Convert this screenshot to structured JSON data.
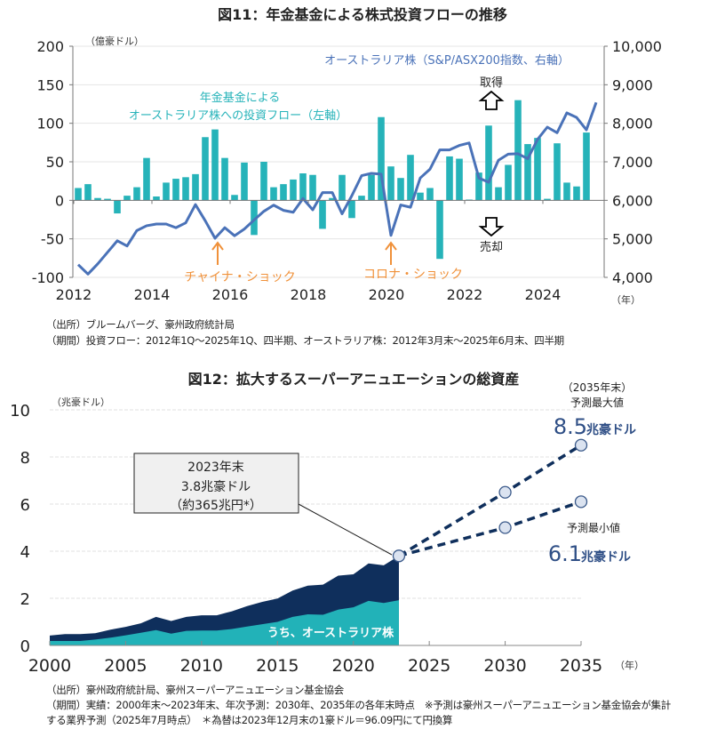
{
  "chart_data": [
    {
      "type": "bar+line",
      "title": "図11：年金基金による株式投資フローの推移",
      "left_unit": "（億豪ドル）",
      "x_unit": "（年）",
      "x_ticks": [
        "2012",
        "2014",
        "2016",
        "2018",
        "2020",
        "2022",
        "2024"
      ],
      "left_ylim": [
        -100,
        200
      ],
      "left_ticks": [
        "200",
        "150",
        "100",
        "50",
        "0",
        "-50",
        "-100"
      ],
      "right_ylim": [
        4000,
        10000
      ],
      "right_ticks": [
        "10,000",
        "9,000",
        "8,000",
        "7,000",
        "6,000",
        "5,000",
        "4,000"
      ],
      "bar_series": {
        "name": "年金基金による\nオーストラリア株への投資フロー（左軸）",
        "label_line1": "年金基金による",
        "label_line2": "オーストラリア株への投資フロー（左軸）",
        "period": "2012Q1-2025Q1 quarterly",
        "values": [
          16,
          21,
          3,
          2,
          -17,
          6,
          17,
          55,
          5,
          23,
          28,
          30,
          34,
          82,
          92,
          55,
          7,
          49,
          -45,
          50,
          17,
          21,
          27,
          35,
          33,
          -37,
          3,
          33,
          -23,
          6,
          33,
          108,
          44,
          29,
          59,
          10,
          16,
          -76,
          57,
          54,
          1,
          36,
          97,
          17,
          46,
          130,
          73,
          81,
          2,
          74,
          23,
          18,
          88
        ]
      },
      "line_series": {
        "name": "オーストラリア株（S&P/ASX200指数、右軸）",
        "period": "2012Q1-2025Q2 quarterly",
        "values": [
          4330,
          4085,
          4350,
          4650,
          4950,
          4815,
          5215,
          5340,
          5385,
          5385,
          5290,
          5415,
          5890,
          5470,
          5015,
          5290,
          5080,
          5255,
          5490,
          5715,
          5875,
          5740,
          5690,
          6045,
          5755,
          6200,
          6200,
          5650,
          6120,
          6640,
          6700,
          6680,
          5090,
          5880,
          5820,
          6580,
          6810,
          7310,
          7310,
          7425,
          7490,
          6580,
          6470,
          7040,
          7200,
          7210,
          7080,
          7580,
          7900,
          7755,
          8270,
          8150,
          7830,
          8540
        ]
      },
      "annotations": {
        "buy": "取得",
        "sell": "売却",
        "china_shock": "チャイナ・ショック",
        "corona_shock": "コロナ・ショック"
      },
      "notes": [
        "（出所）ブルームバーグ、豪州政府統計局",
        "（期間）投資フロー：2012年1Q～2025年1Q、四半期、オーストラリア株：2012年3月末～2025年6月末、四半期"
      ],
      "grid": true
    },
    {
      "type": "area",
      "title": "図12：拡大するスーパーアニュエーションの総資産",
      "y_unit": "（兆豪ドル）",
      "x_unit": "（年）",
      "ylim": [
        0,
        10
      ],
      "y_ticks": [
        "0",
        "2",
        "4",
        "6",
        "8",
        "10"
      ],
      "x_ticks": [
        "2000",
        "2005",
        "2010",
        "2015",
        "2020",
        "2025",
        "2030",
        "2035"
      ],
      "x": [
        2000,
        2001,
        2002,
        2003,
        2004,
        2005,
        2006,
        2007,
        2008,
        2009,
        2010,
        2011,
        2012,
        2013,
        2014,
        2015,
        2016,
        2017,
        2018,
        2019,
        2020,
        2021,
        2022,
        2023
      ],
      "total": [
        0.42,
        0.48,
        0.48,
        0.52,
        0.67,
        0.79,
        0.94,
        1.21,
        1.04,
        1.21,
        1.28,
        1.28,
        1.45,
        1.67,
        1.85,
        1.99,
        2.33,
        2.54,
        2.58,
        2.96,
        3.02,
        3.48,
        3.4,
        3.8
      ],
      "australian_equities": {
        "name": "うち、オーストラリア株",
        "values": [
          0.19,
          0.19,
          0.19,
          0.25,
          0.33,
          0.43,
          0.54,
          0.65,
          0.5,
          0.62,
          0.63,
          0.63,
          0.7,
          0.8,
          0.9,
          1.0,
          1.21,
          1.32,
          1.3,
          1.52,
          1.62,
          1.89,
          1.8,
          1.92
        ]
      },
      "forecast_max": {
        "x": [
          2023,
          2030,
          2035
        ],
        "values": [
          3.8,
          6.5,
          8.5
        ]
      },
      "forecast_min": {
        "x": [
          2023,
          2030,
          2035
        ],
        "values": [
          3.8,
          5.0,
          6.1
        ]
      },
      "callout": {
        "line1": "2023年末",
        "line2": "3.8兆豪ドル",
        "line3": "（約365兆円*）"
      },
      "max_label": {
        "period": "（2035年末）",
        "title": "予測最大値",
        "value": "8.5",
        "unit": "兆豪ドル"
      },
      "min_label": {
        "title": "予測最小値",
        "value": "6.1",
        "unit": "兆豪ドル"
      },
      "notes": [
        "（出所）豪州政府統計局、豪州スーパーアニュエーション基金協会",
        "（期間）実績：2000年末～2023年末、年次予測：2030年、2035年の各年末時点　※予測は豪州スーパーアニュエーション基金協会が集計",
        "する業界予測（2025年7月時点）　＊為替は2023年12月末の1豪ドル＝96.09円にて円換算"
      ],
      "grid": true
    }
  ],
  "colors": {
    "bar": "#26b3b9",
    "line": "#4a72b8",
    "shock": "#f0913a",
    "area_total": "#0f2f5c",
    "area_aus": "#22b2b8",
    "marker_fill": "#dbe3f0",
    "marker_stroke": "#3b5a8a",
    "forecast_text": "#2f4f86"
  }
}
